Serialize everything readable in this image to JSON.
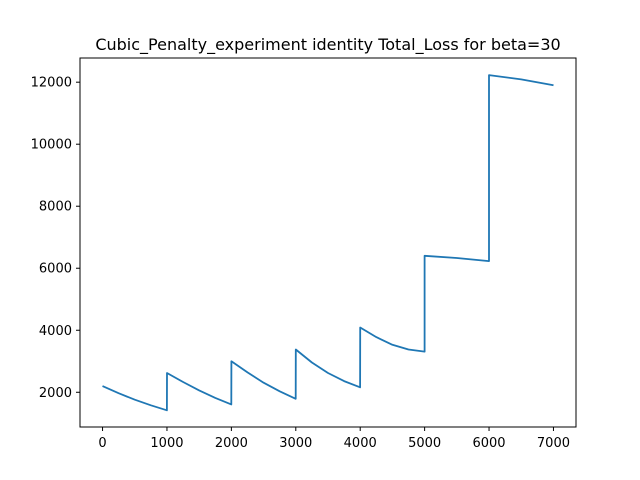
{
  "chart_data": {
    "type": "line",
    "title": "Cubic_Penalty_experiment identity Total_Loss for beta=30",
    "xlabel": "",
    "ylabel": "",
    "xlim": [
      -350,
      7350
    ],
    "ylim": [
      880,
      12780
    ],
    "grid": false,
    "x_ticks": [
      0,
      1000,
      2000,
      3000,
      4000,
      5000,
      6000,
      7000
    ],
    "x_tick_labels": [
      "0",
      "1000",
      "2000",
      "3000",
      "4000",
      "5000",
      "6000",
      "7000"
    ],
    "y_ticks": [
      2000,
      4000,
      6000,
      8000,
      10000,
      12000
    ],
    "y_tick_labels": [
      "2000",
      "4000",
      "6000",
      "8000",
      "10000",
      "12000"
    ],
    "line_color": "#1f77b4",
    "series": [
      {
        "x": [
          0,
          250,
          500,
          750,
          999,
          1000,
          1250,
          1500,
          1750,
          1999,
          2000,
          2250,
          2500,
          2750,
          2999,
          3000,
          3250,
          3500,
          3750,
          3999,
          4000,
          4250,
          4500,
          4750,
          4999,
          5000,
          5500,
          5999,
          6000,
          6500,
          7000
        ],
        "y": [
          2200,
          1970,
          1760,
          1580,
          1420,
          2620,
          2330,
          2060,
          1820,
          1610,
          3000,
          2640,
          2310,
          2030,
          1790,
          3380,
          2960,
          2620,
          2360,
          2160,
          4090,
          3780,
          3530,
          3380,
          3310,
          6400,
          6330,
          6230,
          12230,
          12090,
          11900
        ]
      }
    ]
  }
}
